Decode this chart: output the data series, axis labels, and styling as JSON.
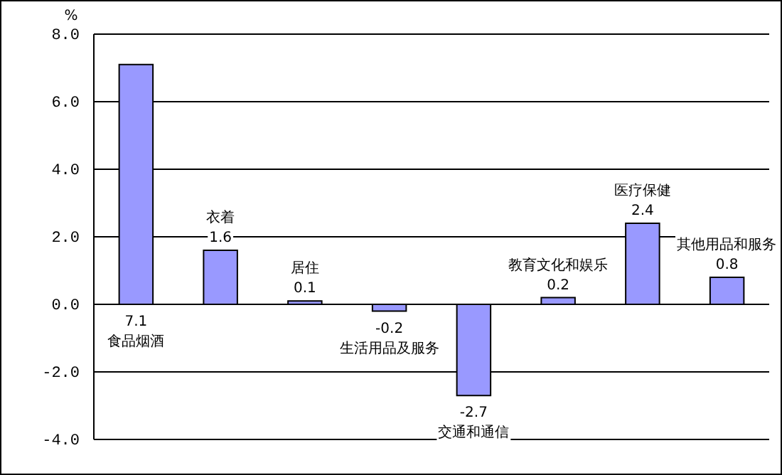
{
  "chart_data": {
    "type": "bar",
    "ylabel": "%",
    "categories": [
      "食品烟酒",
      "衣着",
      "居住",
      "生活用品及服务",
      "交通和通信",
      "教育文化和娱乐",
      "医疗保健",
      "其他用品和服务"
    ],
    "values": [
      7.1,
      1.6,
      0.1,
      -0.2,
      -2.7,
      0.2,
      2.4,
      0.8
    ],
    "color": "#9999ff",
    "ylim": [
      -4,
      8
    ],
    "yticks": [
      {
        "value": -4,
        "label": "-4.0"
      },
      {
        "value": -2,
        "label": "-2.0"
      },
      {
        "value": 0,
        "label": "0.0"
      },
      {
        "value": 2,
        "label": "2.0"
      },
      {
        "value": 4,
        "label": "4.0"
      },
      {
        "value": 6,
        "label": "6.0"
      },
      {
        "value": 8,
        "label": "8.0"
      }
    ],
    "grid": "y",
    "data_labels": true
  }
}
